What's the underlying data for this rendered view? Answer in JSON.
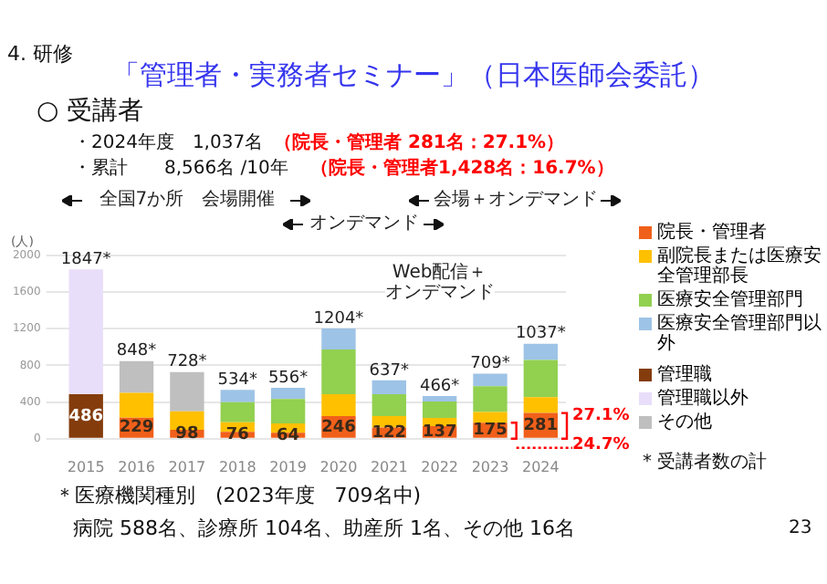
{
  "chart_data": {
    "type": "bar",
    "stacked": true,
    "title": "「管理者・実務者セミナー」（日本医師会委託）",
    "ylabel": "(人)",
    "categories": [
      "2015",
      "2016",
      "2017",
      "2018",
      "2019",
      "2020",
      "2021",
      "2022",
      "2023",
      "2024"
    ],
    "series": [
      {
        "name": "院長・管理者",
        "color": "#f0601a",
        "values": [
          null,
          229,
          98,
          76,
          64,
          246,
          122,
          137,
          175,
          281
        ],
        "value_labels": [
          null,
          "229",
          "98",
          "76",
          "64",
          "246",
          "122",
          "137",
          "175",
          "281"
        ]
      },
      {
        "name": "副院長または医療安全管理部長",
        "color": "#ffc000",
        "values": [
          null,
          271,
          202,
          104,
          103,
          241,
          125,
          90,
          118,
          172
        ]
      },
      {
        "name": "医療安全管理部門",
        "color": "#92d050",
        "values": [
          null,
          null,
          null,
          220,
          266,
          486,
          240,
          180,
          280,
          407
        ]
      },
      {
        "name": "医療安全管理部門以外",
        "color": "#9dc3e6",
        "values": [
          null,
          null,
          null,
          134,
          123,
          231,
          150,
          59,
          136,
          177
        ]
      },
      {
        "name": "管理職",
        "color": "#843c0c",
        "values": [
          486,
          null,
          null,
          null,
          null,
          null,
          null,
          null,
          null,
          null
        ],
        "value_labels": [
          "486",
          null,
          null,
          null,
          null,
          null,
          null,
          null,
          null,
          null
        ]
      },
      {
        "name": "管理職以外",
        "color": "#e8defa",
        "values": [
          1361,
          null,
          null,
          null,
          null,
          null,
          null,
          null,
          null,
          null
        ]
      },
      {
        "name": "その他",
        "color": "#bfbfbf",
        "values": [
          null,
          348,
          428,
          null,
          null,
          null,
          null,
          null,
          null,
          null
        ]
      }
    ],
    "totals": [
      "1847*",
      "848*",
      "728*",
      "534*",
      "556*",
      "1204*",
      "637*",
      "466*",
      "709*",
      "1037*"
    ],
    "ylim": [
      0,
      2000
    ],
    "yticks": [
      0,
      400,
      800,
      1200,
      1600,
      2000
    ],
    "grid": "y",
    "legend": "right",
    "annotations": [
      "4. 研修",
      "○ 受講者",
      "・2024年度　1,037名",
      "（院長・管理者 281名：27.1%）",
      "・累計　　8,566名 /10年",
      "（院長・管理者1,428名：16.7%）",
      "全国7か所　会場開催",
      "オンデマンド",
      "Web配信＋オンデマンド",
      "会場＋オンデマンド",
      {
        "text": "27.1%",
        "x": "2024",
        "y": 281
      },
      "24.7%",
      "* 受講者数の計",
      "＊医療機関種別　(2023年度　709名中)",
      "病院 588名、診療所 104名、助産所 1名、その他 16名",
      "23"
    ]
  }
}
